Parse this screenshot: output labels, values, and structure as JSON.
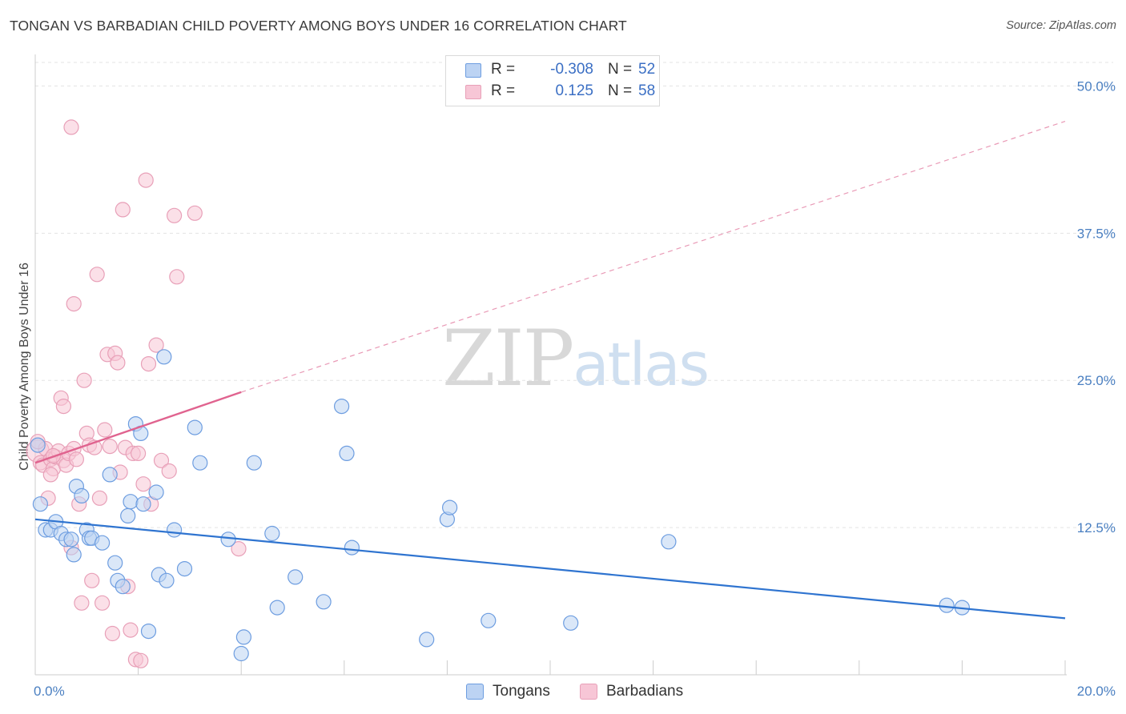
{
  "chart_data": {
    "type": "scatter",
    "title": "TONGAN VS BARBADIAN CHILD POVERTY AMONG BOYS UNDER 16 CORRELATION CHART",
    "source": "Source: ZipAtlas.com",
    "xlabel": "",
    "ylabel": "Child Poverty Among Boys Under 16",
    "xlim": [
      0,
      20
    ],
    "ylim": [
      0,
      52
    ],
    "x_tick_labels": [
      "0.0%",
      "20.0%"
    ],
    "y_ticks": [
      12.5,
      25,
      37.5,
      50
    ],
    "y_tick_labels": [
      "12.5%",
      "25.0%",
      "37.5%",
      "50.0%"
    ],
    "grid": true,
    "legend_position": "top-center",
    "watermark": {
      "zip": "ZIP",
      "atlas": "atlas"
    },
    "legend": [
      {
        "r_label": "R =",
        "r_value": "-0.308",
        "n_label": "N =",
        "n_value": "52"
      },
      {
        "r_label": "R =",
        "r_value": "0.125",
        "n_label": "N =",
        "n_value": "58"
      }
    ],
    "series": [
      {
        "name": "Tongans",
        "color": "#6d9de0",
        "fill": "#bcd3f3",
        "trend": {
          "x0": 0,
          "y0": 13.2,
          "x1": 20,
          "y1": 4.8,
          "color": "#2f74d0"
        },
        "points": [
          [
            0.05,
            19.5
          ],
          [
            0.1,
            14.5
          ],
          [
            0.2,
            12.3
          ],
          [
            0.3,
            12.3
          ],
          [
            0.4,
            13.0
          ],
          [
            0.5,
            12.0
          ],
          [
            0.6,
            11.5
          ],
          [
            0.7,
            11.5
          ],
          [
            0.75,
            10.2
          ],
          [
            0.8,
            16.0
          ],
          [
            0.9,
            15.2
          ],
          [
            1.0,
            12.3
          ],
          [
            1.05,
            11.6
          ],
          [
            1.1,
            11.6
          ],
          [
            1.3,
            11.2
          ],
          [
            1.45,
            17.0
          ],
          [
            1.55,
            9.5
          ],
          [
            1.6,
            8.0
          ],
          [
            1.7,
            7.5
          ],
          [
            1.8,
            13.5
          ],
          [
            1.85,
            14.7
          ],
          [
            1.95,
            21.3
          ],
          [
            2.05,
            20.5
          ],
          [
            2.1,
            14.5
          ],
          [
            2.2,
            3.7
          ],
          [
            2.35,
            15.5
          ],
          [
            2.4,
            8.5
          ],
          [
            2.5,
            27.0
          ],
          [
            2.55,
            8.0
          ],
          [
            2.7,
            12.3
          ],
          [
            2.9,
            9.0
          ],
          [
            3.1,
            21.0
          ],
          [
            3.2,
            18.0
          ],
          [
            3.75,
            11.5
          ],
          [
            4.05,
            3.2
          ],
          [
            4.0,
            1.8
          ],
          [
            4.25,
            18.0
          ],
          [
            4.6,
            12.0
          ],
          [
            4.7,
            5.7
          ],
          [
            5.05,
            8.3
          ],
          [
            5.6,
            6.2
          ],
          [
            5.95,
            22.8
          ],
          [
            6.05,
            18.8
          ],
          [
            6.15,
            10.8
          ],
          [
            7.6,
            3.0
          ],
          [
            8.0,
            13.2
          ],
          [
            8.05,
            14.2
          ],
          [
            8.8,
            4.6
          ],
          [
            10.4,
            4.4
          ],
          [
            12.3,
            11.3
          ],
          [
            17.7,
            5.9
          ],
          [
            18.0,
            5.7
          ]
        ]
      },
      {
        "name": "Barbadians",
        "color": "#e8a0b8",
        "fill": "#f7c6d6",
        "trend": {
          "x0": 0,
          "y0": 18.0,
          "x1": 4,
          "y1": 24.0,
          "color": "#e0638f",
          "extend_x1": 20,
          "extend_y1": 47.0
        },
        "points": [
          [
            0.05,
            19.0
          ],
          [
            0.1,
            18.0
          ],
          [
            0.15,
            17.8
          ],
          [
            0.2,
            19.2
          ],
          [
            0.25,
            15.0
          ],
          [
            0.3,
            18.3
          ],
          [
            0.35,
            17.5
          ],
          [
            0.4,
            18.5
          ],
          [
            0.45,
            19.0
          ],
          [
            0.5,
            23.5
          ],
          [
            0.55,
            18.2
          ],
          [
            0.6,
            17.8
          ],
          [
            0.65,
            18.8
          ],
          [
            0.7,
            10.8
          ],
          [
            0.75,
            19.2
          ],
          [
            0.8,
            18.3
          ],
          [
            0.85,
            14.5
          ],
          [
            0.9,
            6.1
          ],
          [
            0.95,
            25.0
          ],
          [
            1.0,
            20.5
          ],
          [
            1.05,
            19.5
          ],
          [
            1.1,
            8.0
          ],
          [
            1.15,
            19.3
          ],
          [
            1.2,
            34.0
          ],
          [
            1.25,
            15.0
          ],
          [
            1.3,
            6.1
          ],
          [
            1.35,
            20.8
          ],
          [
            1.4,
            27.2
          ],
          [
            1.45,
            19.4
          ],
          [
            1.5,
            3.5
          ],
          [
            1.55,
            27.3
          ],
          [
            1.6,
            26.5
          ],
          [
            1.65,
            17.2
          ],
          [
            1.7,
            39.5
          ],
          [
            1.75,
            19.3
          ],
          [
            1.8,
            7.5
          ],
          [
            1.85,
            3.8
          ],
          [
            1.9,
            18.8
          ],
          [
            1.95,
            1.3
          ],
          [
            2.0,
            18.8
          ],
          [
            2.05,
            1.2
          ],
          [
            2.1,
            16.2
          ],
          [
            2.15,
            42.0
          ],
          [
            2.2,
            26.4
          ],
          [
            2.25,
            14.5
          ],
          [
            2.35,
            28.0
          ],
          [
            2.45,
            18.2
          ],
          [
            2.6,
            17.3
          ],
          [
            2.7,
            39.0
          ],
          [
            2.75,
            33.8
          ],
          [
            3.1,
            39.2
          ],
          [
            3.95,
            10.7
          ],
          [
            0.7,
            46.5
          ],
          [
            0.75,
            31.5
          ],
          [
            0.05,
            19.8
          ],
          [
            0.3,
            17.0
          ],
          [
            0.55,
            22.8
          ],
          [
            0.35,
            18.6
          ]
        ]
      }
    ]
  }
}
